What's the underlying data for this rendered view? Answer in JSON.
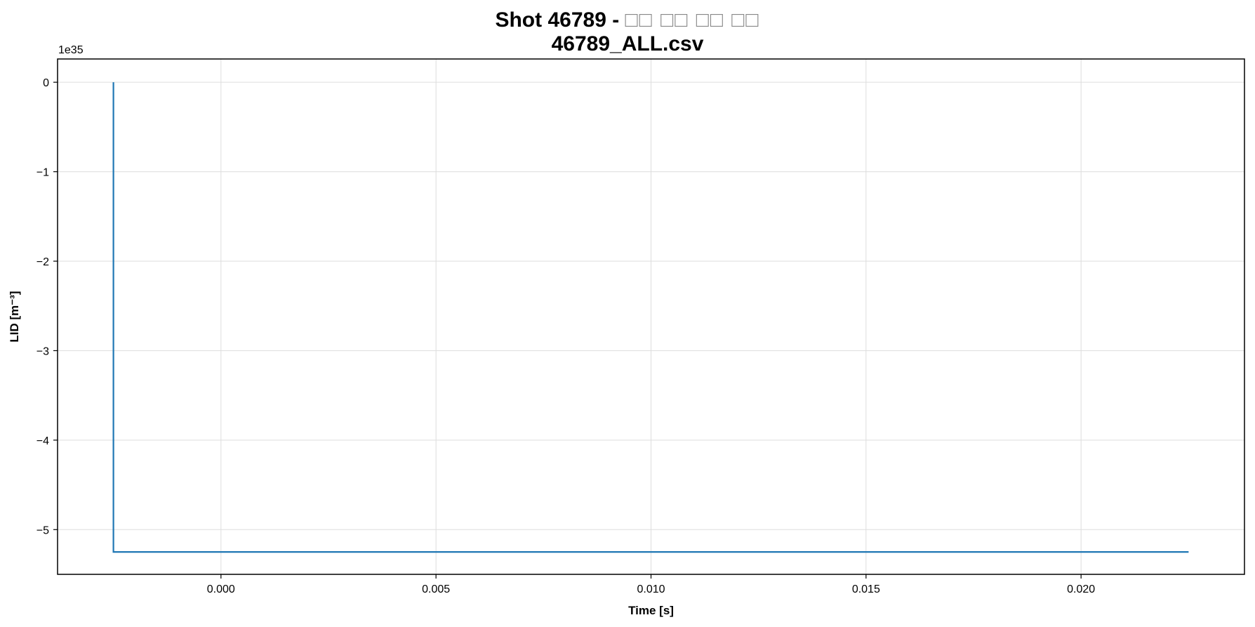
{
  "chart_data": {
    "type": "line",
    "title_main": "Shot 46789 - ",
    "title_suffix": "□□ □□ □□ □□",
    "subtitle": "46789_ALL.csv",
    "xlabel": "Time [s]",
    "ylabel": "LID [m⁻³]",
    "y_offset_label": "1e35",
    "xlim": [
      -0.0038,
      0.0238
    ],
    "ylim": [
      -5.5,
      0.26
    ],
    "x_ticks": [
      0.0,
      0.005,
      0.01,
      0.015,
      0.02
    ],
    "x_tick_labels": [
      "0.000",
      "0.005",
      "0.010",
      "0.015",
      "0.020"
    ],
    "y_ticks": [
      0,
      -1,
      -2,
      -3,
      -4,
      -5
    ],
    "y_tick_labels": [
      "0",
      "−1",
      "−2",
      "−3",
      "−4",
      "−5"
    ],
    "grid": true,
    "series": [
      {
        "color": "#1f77b4",
        "x": [
          -0.0025,
          -0.0025,
          0.0225
        ],
        "y": [
          0.0,
          -5.25,
          -5.25
        ]
      }
    ]
  }
}
